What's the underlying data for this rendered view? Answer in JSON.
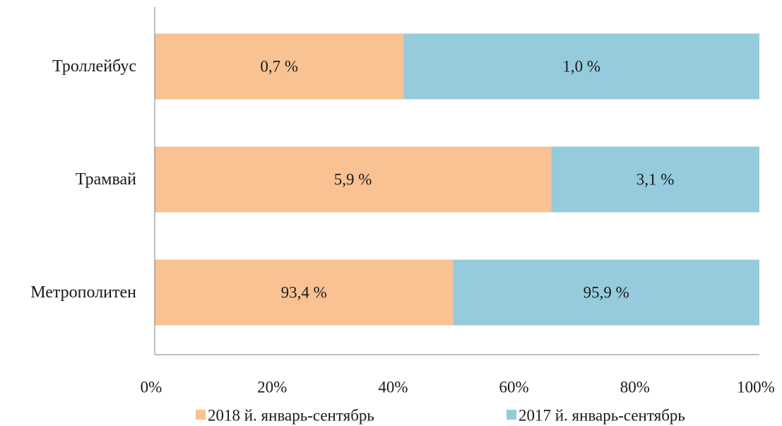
{
  "chart_data": {
    "type": "bar",
    "orientation": "horizontal",
    "stacked": "percent",
    "categories": [
      "Троллейбус",
      "Трамвай",
      "Метрополитен"
    ],
    "series": [
      {
        "name": "2018 й. январь-сентябрь",
        "values": [
          0.7,
          5.9,
          93.4
        ],
        "labels": [
          "0,7 %",
          "5,9 %",
          "93,4 %"
        ],
        "color": "#f8c293"
      },
      {
        "name": "2017 й. январь-сентябрь",
        "values": [
          1.0,
          3.1,
          95.9
        ],
        "labels": [
          "1,0 %",
          "3,1 %",
          "95,9 %"
        ],
        "color": "#95cbdc"
      }
    ],
    "xlim": [
      0,
      100
    ],
    "xticks": [
      "0%",
      "20%",
      "40%",
      "60%",
      "80%",
      "100%"
    ],
    "grid": false,
    "legend": "bottom"
  }
}
